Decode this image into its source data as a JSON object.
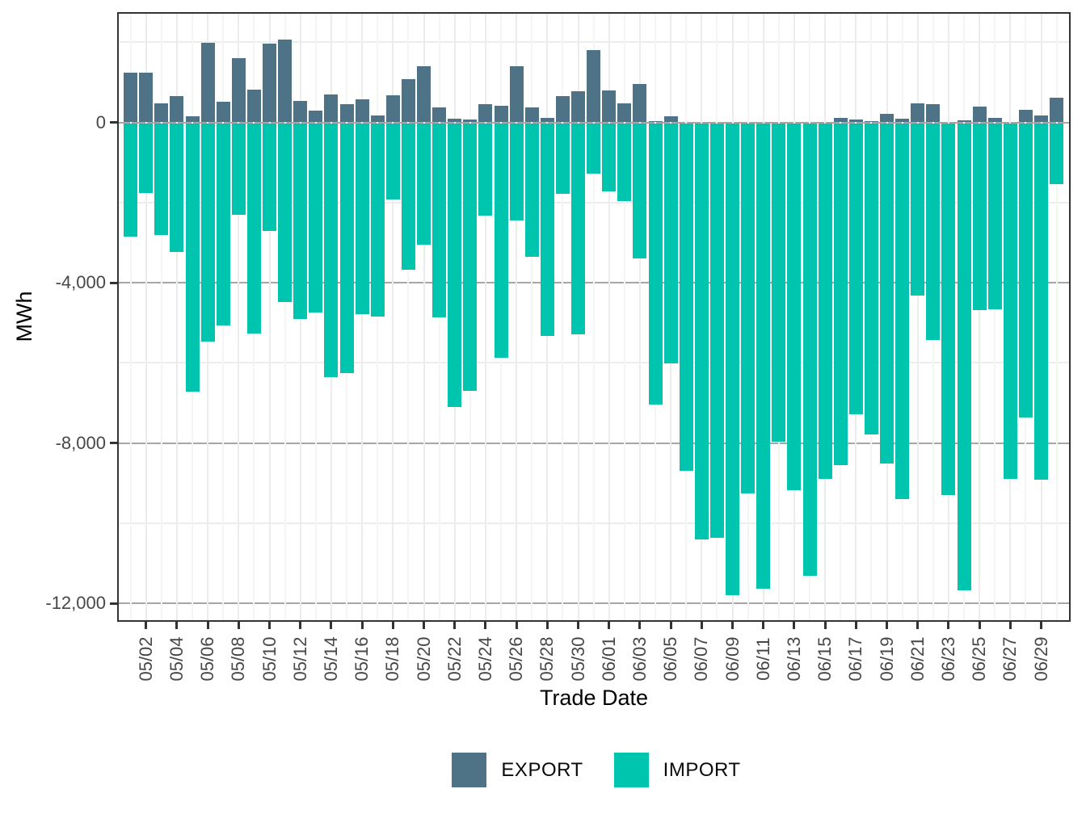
{
  "figure": {
    "y_axis": {
      "title": "MWh",
      "ticks": [
        {
          "label": "0",
          "value": 0
        },
        {
          "label": "-4,000",
          "value": -4000
        },
        {
          "label": "-8,000",
          "value": -8000
        },
        {
          "label": "-12,000",
          "value": -12000
        }
      ]
    },
    "x_axis": {
      "title": "Trade Date",
      "tick_labels": [
        "05/02",
        "05/04",
        "05/06",
        "05/08",
        "05/10",
        "05/12",
        "05/14",
        "05/16",
        "05/18",
        "05/20",
        "05/22",
        "05/24",
        "05/26",
        "05/28",
        "05/30",
        "06/01",
        "06/03",
        "06/05",
        "06/07",
        "06/09",
        "06/11",
        "06/13",
        "06/15",
        "06/17",
        "06/19",
        "06/21",
        "06/23",
        "06/25",
        "06/27",
        "06/29"
      ]
    },
    "legend": [
      {
        "label": "EXPORT",
        "color": "#4F7386"
      },
      {
        "label": "IMPORT",
        "color": "#00C5AE"
      }
    ]
  },
  "chart_data": {
    "type": "bar",
    "orientation": "vertical-diverging",
    "title": "",
    "xlabel": "Trade Date",
    "ylabel": "MWh",
    "ylim": [
      -12460,
      2750
    ],
    "grid": "on",
    "legend_position": "bottom-center",
    "y_major_gridlines": [
      0,
      -4000,
      -8000,
      -12000
    ],
    "y_minor_gridlines": [
      2000,
      -2000,
      -6000,
      -10000
    ],
    "categories": [
      "05/01",
      "05/02",
      "05/03",
      "05/04",
      "05/05",
      "05/06",
      "05/07",
      "05/08",
      "05/09",
      "05/10",
      "05/11",
      "05/12",
      "05/13",
      "05/14",
      "05/15",
      "05/16",
      "05/17",
      "05/18",
      "05/19",
      "05/20",
      "05/21",
      "05/22",
      "05/23",
      "05/24",
      "05/25",
      "05/26",
      "05/27",
      "05/28",
      "05/29",
      "05/30",
      "05/31",
      "06/01",
      "06/02",
      "06/03",
      "06/04",
      "06/05",
      "06/06",
      "06/07",
      "06/08",
      "06/09",
      "06/10",
      "06/11",
      "06/12",
      "06/13",
      "06/14",
      "06/15",
      "06/16",
      "06/17",
      "06/18",
      "06/19",
      "06/20",
      "06/21",
      "06/22",
      "06/23",
      "06/24",
      "06/25",
      "06/26",
      "06/27",
      "06/28",
      "06/29",
      "06/30"
    ],
    "series": [
      {
        "name": "EXPORT",
        "color": "#4F7386",
        "values": [
          1240,
          1240,
          480,
          655,
          150,
          1980,
          515,
          1595,
          820,
          1960,
          2065,
          535,
          300,
          690,
          445,
          580,
          165,
          680,
          1070,
          1405,
          365,
          85,
          65,
          455,
          415,
          1405,
          380,
          115,
          650,
          770,
          1810,
          800,
          470,
          955,
          30,
          145,
          0,
          0,
          0,
          0,
          0,
          0,
          0,
          0,
          0,
          0,
          105,
          65,
          30,
          210,
          95,
          480,
          460,
          0,
          45,
          400,
          115,
          0,
          315,
          180,
          610
        ]
      },
      {
        "name": "IMPORT",
        "color": "#00C5AE",
        "values": [
          -2850,
          -1760,
          -2810,
          -3230,
          -6720,
          -5465,
          -5075,
          -2305,
          -5275,
          -2705,
          -4485,
          -4905,
          -4750,
          -6350,
          -6250,
          -4790,
          -4840,
          -1920,
          -3685,
          -3045,
          -4870,
          -7105,
          -6705,
          -2335,
          -5880,
          -2455,
          -3360,
          -5330,
          -1785,
          -5290,
          -1280,
          -1730,
          -1970,
          -3395,
          -7035,
          -6015,
          -8690,
          -10400,
          -10365,
          -11790,
          -9260,
          -11645,
          -7975,
          -9185,
          -11310,
          -8890,
          -8555,
          -7280,
          -7795,
          -8515,
          -9395,
          -4315,
          -5425,
          -9295,
          -11670,
          -4690,
          -4660,
          -8905,
          -7370,
          -8915,
          -1550
        ]
      }
    ]
  }
}
